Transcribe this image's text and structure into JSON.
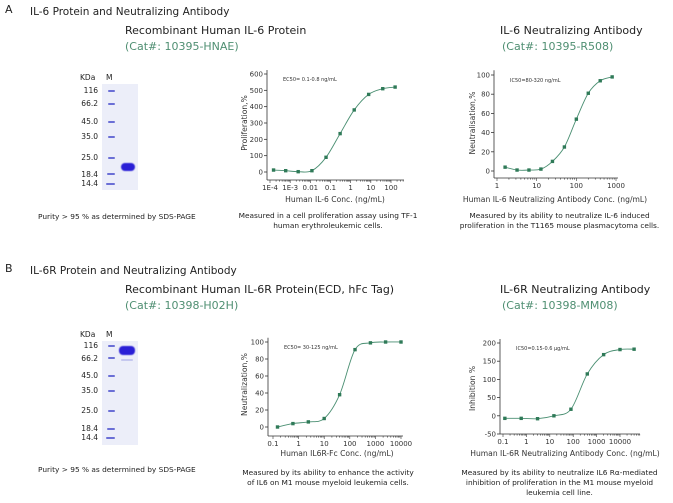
{
  "panels": [
    {
      "letter": "A",
      "title": "IL-6 Protein and Neutralizing Antibody",
      "protein": {
        "name": "Recombinant  Human IL-6 Protein",
        "cat": "(Cat#: 10395-HNAE)"
      },
      "antibody": {
        "name": "IL-6 Neutralizing Antibody",
        "cat": "(Cat#: 10395-R508)"
      },
      "gel": {
        "unit": "KDa",
        "lane": "M",
        "markers": [
          "116",
          "66.2",
          "45.0",
          "35.0",
          "25.0",
          "18.4",
          "14.4"
        ]
      },
      "purity": "Purity > 95 % as determined by SDS-PAGE",
      "caption_protein": "Measured in a cell proliferation assay using TF-1 human erythroleukemic cells.",
      "caption_antibody": "Measured by its ability to neutralize IL-6 induced proliferation in the T1165 mouse plasmacytoma cells."
    },
    {
      "letter": "B",
      "title": "IL-6R Protein and Neutralizing Antibody",
      "protein": {
        "name": "Recombinant  Human IL-6R Protein(ECD, hFc Tag)",
        "cat": "(Cat#: 10398-H02H)"
      },
      "antibody": {
        "name": "IL-6R Neutralizing Antibody",
        "cat": "(Cat#: 10398-MM08)"
      },
      "gel": {
        "unit": "KDa",
        "lane": "M",
        "markers": [
          "116",
          "66.2",
          "45.0",
          "35.0",
          "25.0",
          "18.4",
          "14.4"
        ]
      },
      "purity": "Purity > 95 % as determined by SDS-PAGE",
      "caption_protein": "Measured by its ability to enhance the activity of IL6 on M1 mouse myeloid leukemia cells.",
      "caption_antibody": "Measured by its ability to neutralize IL6 Rα-mediated inhibition of proliferation in the M1 mouse myeloid leukemia cell line."
    }
  ],
  "colors": {
    "curve": "#4a8f72",
    "points": "#2f7a58",
    "cat_text": "#4f8f72",
    "gel_band": "#2a1fd6",
    "gel_marker": "#6b6fd6"
  },
  "chart_data": [
    {
      "type": "scatter",
      "fit": "sigmoid",
      "xscale": "log",
      "annotation": "EC50= 0.1-0.8 ng/mL",
      "xlabel": "Human IL-6 Conc. (ng/mL)",
      "ylabel": "Proliferation,%",
      "xticks": [
        0.0001,
        0.001,
        0.01,
        0.1,
        1,
        10,
        100
      ],
      "xtick_labels": [
        "1E-4",
        "1E-3",
        "0.01",
        "0.1",
        "1",
        "10",
        "100"
      ],
      "yticks": [
        0,
        100,
        200,
        300,
        400,
        500,
        600
      ],
      "ylim": [
        -30,
        600
      ],
      "x": [
        0.00015,
        0.0006,
        0.0025,
        0.012,
        0.06,
        0.3,
        1.5,
        7.8,
        39,
        160
      ],
      "y": [
        12,
        8,
        2,
        8,
        90,
        235,
        380,
        475,
        510,
        520
      ]
    },
    {
      "type": "scatter",
      "fit": "sigmoid",
      "xscale": "log",
      "annotation": "IC50=80-320 ng/mL",
      "xlabel": "Human IL-6 Neutralizing Antibody Conc. (ng/mL)",
      "ylabel": "Neutralisation,%",
      "xticks": [
        1,
        10,
        100,
        1000
      ],
      "xtick_labels": [
        "1",
        "10",
        "100",
        "1000"
      ],
      "yticks": [
        0,
        20,
        40,
        60,
        80,
        100
      ],
      "ylim": [
        -5,
        105
      ],
      "x": [
        1.6,
        3.2,
        6.4,
        12.8,
        25,
        50,
        100,
        200,
        400,
        800
      ],
      "y": [
        4,
        1,
        1,
        2,
        10,
        25,
        54,
        81,
        94,
        98
      ]
    },
    {
      "type": "scatter",
      "fit": "sigmoid",
      "xscale": "log",
      "annotation": "EC50= 30-125 ng/mL",
      "xlabel": "Human IL6R-Fc Conc. (ng/mL)",
      "ylabel": "Neutralization,%",
      "xticks": [
        0.1,
        1,
        10,
        100,
        1000,
        10000
      ],
      "xtick_labels": [
        "0.1",
        "1",
        "10",
        "100",
        "1000",
        "10000"
      ],
      "yticks": [
        0,
        20,
        40,
        60,
        80,
        100
      ],
      "ylim": [
        -10,
        105
      ],
      "x": [
        0.15,
        0.6,
        2.4,
        10,
        40,
        160,
        640,
        2500,
        10000
      ],
      "y": [
        0,
        4,
        6,
        10,
        38,
        91,
        99,
        100,
        100
      ]
    },
    {
      "type": "scatter",
      "fit": "sigmoid",
      "xscale": "log",
      "annotation": "IC50=0.15-0.6 μg/mL",
      "xlabel": "Human IL-6R Neutralizing Antibody Conc. (ng/mL)",
      "ylabel": "Inhibition %",
      "xticks": [
        0.1,
        1,
        10,
        100,
        1000,
        10000
      ],
      "xtick_labels": [
        "0.1",
        "1",
        "10",
        "100",
        "1000",
        "10000"
      ],
      "yticks": [
        -50,
        0,
        50,
        100,
        150,
        200
      ],
      "ylim": [
        -50,
        210
      ],
      "x": [
        0.12,
        0.6,
        3,
        15,
        80,
        400,
        2000,
        10000,
        40000
      ],
      "y": [
        -7,
        -7,
        -8,
        0,
        18,
        115,
        168,
        182,
        183
      ]
    }
  ]
}
